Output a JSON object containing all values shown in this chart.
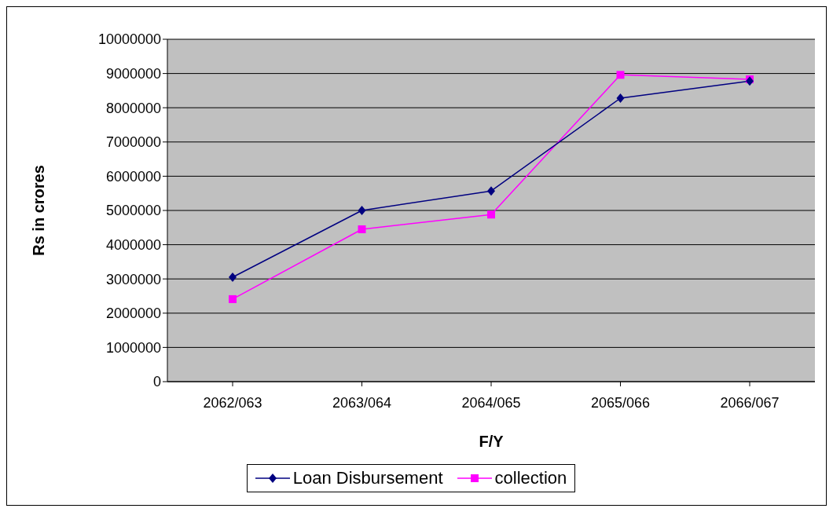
{
  "chart_data": {
    "type": "line",
    "xlabel": "F/Y",
    "ylabel": "Rs in crores",
    "categories": [
      "2062/063",
      "2063/064",
      "2064/065",
      "2065/066",
      "2066/067"
    ],
    "series": [
      {
        "name": "Loan Disbursement",
        "color": "#000080",
        "marker": "diamond",
        "values": [
          3050000,
          5000000,
          5570000,
          8280000,
          8780000
        ]
      },
      {
        "name": "collection",
        "color": "#ff00ff",
        "marker": "square",
        "values": [
          2410000,
          4450000,
          4880000,
          8960000,
          8830000
        ]
      }
    ],
    "ylim": [
      0,
      10000000
    ],
    "yticks": [
      0,
      1000000,
      2000000,
      3000000,
      4000000,
      5000000,
      6000000,
      7000000,
      8000000,
      9000000,
      10000000
    ],
    "grid": "y",
    "legend": "bottom",
    "line_style": "solid"
  }
}
